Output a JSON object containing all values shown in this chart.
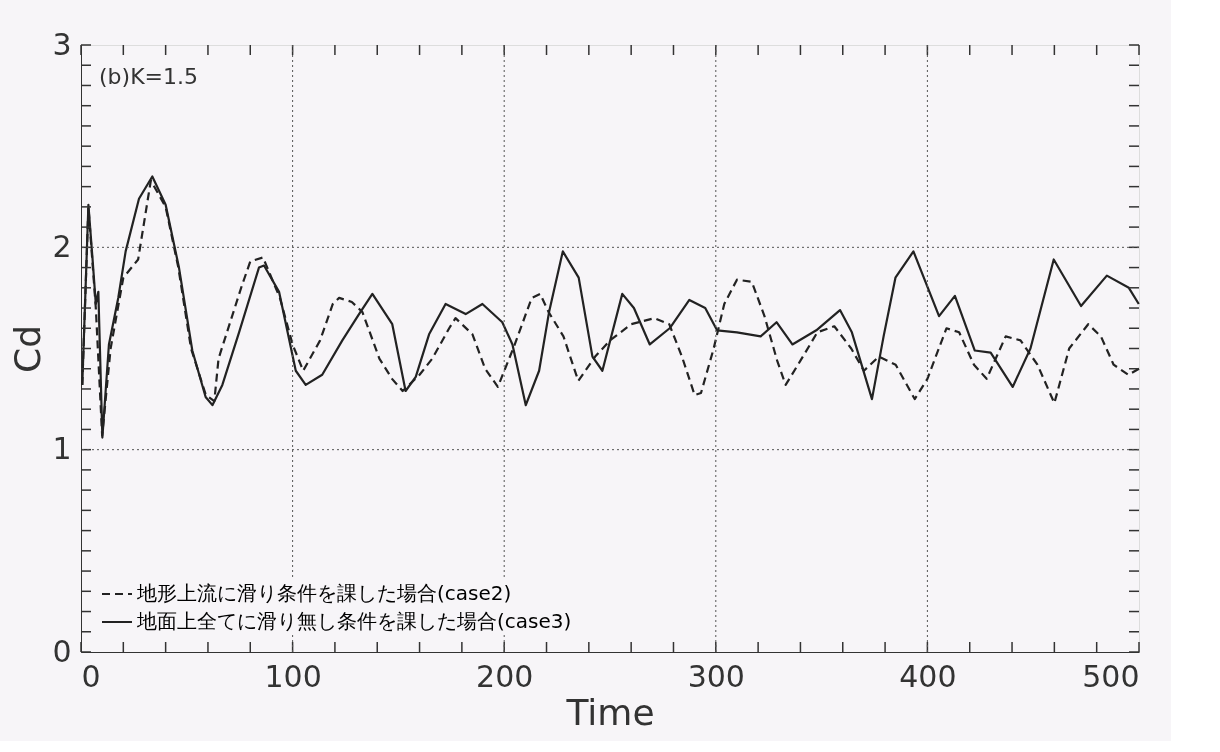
{
  "chart_data": {
    "type": "line",
    "xlabel": "Time",
    "ylabel": "Cd",
    "annotations": [
      "(b)K=1.5"
    ],
    "xlim": [
      0,
      500
    ],
    "ylim": [
      0,
      3
    ],
    "xticks": [
      0,
      {
        "value": 20,
        "label": null
      },
      {
        "value": 40,
        "label": null
      },
      {
        "value": 60,
        "label": null
      },
      {
        "value": 80,
        "label": null
      },
      100,
      {
        "value": 120,
        "label": null
      },
      {
        "value": 140,
        "label": null
      },
      {
        "value": 160,
        "label": null
      },
      {
        "value": 180,
        "label": null
      },
      200,
      {
        "value": 220,
        "label": null
      },
      {
        "value": 240,
        "label": null
      },
      {
        "value": 260,
        "label": null
      },
      {
        "value": 280,
        "label": null
      },
      300,
      {
        "value": 320,
        "label": null
      },
      {
        "value": 340,
        "label": null
      },
      {
        "value": 360,
        "label": null
      },
      {
        "value": 380,
        "label": null
      },
      400,
      {
        "value": 420,
        "label": null
      },
      {
        "value": 440,
        "label": null
      },
      {
        "value": 460,
        "label": null
      },
      {
        "value": 480,
        "label": null
      },
      500
    ],
    "yticks": [
      0,
      {
        "value": 0.1,
        "label": null
      },
      {
        "value": 0.2,
        "label": null
      },
      {
        "value": 0.3,
        "label": null
      },
      {
        "value": 0.4,
        "label": null
      },
      {
        "value": 0.5,
        "label": null
      },
      {
        "value": 0.6,
        "label": null
      },
      {
        "value": 0.7,
        "label": null
      },
      {
        "value": 0.8,
        "label": null
      },
      {
        "value": 0.9,
        "label": null
      },
      1,
      {
        "value": 1.1,
        "label": null
      },
      {
        "value": 1.2,
        "label": null
      },
      {
        "value": 1.3,
        "label": null
      },
      {
        "value": 1.4,
        "label": null
      },
      {
        "value": 1.5,
        "label": null
      },
      {
        "value": 1.6,
        "label": null
      },
      {
        "value": 1.7,
        "label": null
      },
      {
        "value": 1.8,
        "label": null
      },
      {
        "value": 1.9,
        "label": null
      },
      2,
      {
        "value": 2.1,
        "label": null
      },
      {
        "value": 2.2,
        "label": null
      },
      {
        "value": 2.3,
        "label": null
      },
      {
        "value": 2.4,
        "label": null
      },
      {
        "value": 2.5,
        "label": null
      },
      {
        "value": 2.6,
        "label": null
      },
      {
        "value": 2.7,
        "label": null
      },
      {
        "value": 2.8,
        "label": null
      },
      {
        "value": 2.9,
        "label": null
      },
      3
    ],
    "grid": true,
    "legend": "bottom left",
    "marker": "none",
    "series": [
      {
        "name": "地形上流に滑り条件を課した場合(case2)",
        "color": "#222222",
        "line_style": "dashed",
        "x": [
          0.6,
          3.5,
          7,
          10,
          14,
          20,
          27,
          33,
          40,
          46,
          52,
          59,
          63,
          65,
          76,
          80,
          86,
          94,
          100,
          105,
          113,
          119,
          122,
          128,
          133,
          141,
          147,
          152,
          160,
          166,
          174,
          177,
          185,
          191,
          197,
          205,
          213,
          217,
          221,
          228,
          235,
          243,
          250,
          260,
          271,
          278,
          284,
          290,
          293,
          299,
          304,
          310,
          317,
          323,
          329,
          333,
          340,
          348,
          356,
          364,
          370,
          377,
          385,
          394,
          400,
          409,
          415,
          422,
          428,
          437,
          444,
          452,
          460,
          467,
          476,
          482,
          488,
          495,
          500
        ],
        "values": [
          1.32,
          2.2,
          1.7,
          1.07,
          1.5,
          1.85,
          1.94,
          2.33,
          2.2,
          1.9,
          1.5,
          1.27,
          1.24,
          1.45,
          1.81,
          1.93,
          1.95,
          1.75,
          1.52,
          1.39,
          1.54,
          1.72,
          1.75,
          1.73,
          1.68,
          1.45,
          1.35,
          1.29,
          1.37,
          1.45,
          1.6,
          1.65,
          1.57,
          1.4,
          1.31,
          1.52,
          1.75,
          1.77,
          1.68,
          1.56,
          1.34,
          1.46,
          1.54,
          1.62,
          1.65,
          1.62,
          1.46,
          1.27,
          1.28,
          1.5,
          1.72,
          1.84,
          1.83,
          1.66,
          1.44,
          1.32,
          1.44,
          1.58,
          1.61,
          1.5,
          1.39,
          1.46,
          1.42,
          1.25,
          1.35,
          1.6,
          1.58,
          1.42,
          1.35,
          1.56,
          1.54,
          1.42,
          1.23,
          1.5,
          1.62,
          1.56,
          1.42,
          1.37,
          1.4
        ]
      },
      {
        "name": "地面上全てに滑り無し条件を課した場合(case3)",
        "color": "#222222",
        "line_style": "solid",
        "x": [
          0.6,
          3.5,
          5.4,
          7,
          8.2,
          10.1,
          13.2,
          17.6,
          21.1,
          27.4,
          33.7,
          40,
          46.3,
          52.6,
          58.9,
          62.1,
          66.8,
          74.7,
          84.1,
          86.5,
          93.6,
          101.5,
          106.2,
          114,
          123.5,
          131.4,
          137.7,
          147.1,
          153.4,
          158.2,
          164.5,
          172.3,
          181.8,
          189.7,
          199.1,
          203.9,
          210.2,
          216.5,
          221.2,
          227.7,
          235.2,
          241.7,
          246.4,
          255.8,
          261.3,
          268.8,
          278.2,
          287.5,
          295,
          300.6,
          310,
          321.2,
          328.7,
          336.2,
          347.5,
          358.7,
          364.3,
          373.8,
          379.3,
          384.9,
          393.4,
          405.5,
          413,
          422.4,
          429.9,
          440.3,
          448.7,
          459.7,
          472.6,
          484.8,
          495.2,
          499.9
        ],
        "values": [
          1.32,
          2.21,
          1.95,
          1.72,
          1.78,
          1.06,
          1.52,
          1.75,
          1.98,
          2.24,
          2.35,
          2.21,
          1.9,
          1.49,
          1.26,
          1.22,
          1.32,
          1.58,
          1.9,
          1.91,
          1.78,
          1.39,
          1.32,
          1.37,
          1.54,
          1.67,
          1.77,
          1.62,
          1.29,
          1.36,
          1.57,
          1.72,
          1.67,
          1.72,
          1.63,
          1.52,
          1.22,
          1.39,
          1.68,
          1.98,
          1.85,
          1.46,
          1.39,
          1.77,
          1.7,
          1.52,
          1.6,
          1.74,
          1.7,
          1.59,
          1.58,
          1.56,
          1.63,
          1.52,
          1.59,
          1.69,
          1.58,
          1.25,
          1.56,
          1.85,
          1.98,
          1.66,
          1.76,
          1.49,
          1.48,
          1.31,
          1.5,
          1.94,
          1.71,
          1.86,
          1.8,
          1.72
        ]
      }
    ]
  }
}
